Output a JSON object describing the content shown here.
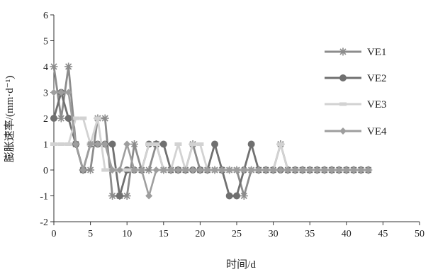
{
  "chart_data": {
    "type": "line",
    "title": "",
    "xlabel": "时间/d",
    "ylabel": "膨胀速率/(mm·d⁻¹)",
    "xlim": [
      0,
      50
    ],
    "ylim": [
      -2,
      6
    ],
    "xticks": [
      "0",
      "5",
      "10",
      "15",
      "20",
      "25",
      "30",
      "35",
      "40",
      "45",
      "50"
    ],
    "yticks": [
      "-2",
      "-1",
      "0",
      "1",
      "2",
      "3",
      "4",
      "5",
      "6"
    ],
    "grid": false,
    "legend_position": "right",
    "series": [
      {
        "name": "VE1",
        "color": "#8c8c8c",
        "marker": "asterisk",
        "x": [
          0,
          1,
          2,
          3,
          4,
          5,
          6,
          7,
          8,
          9,
          10,
          11,
          12,
          13,
          14,
          15,
          16,
          17,
          18,
          19,
          20,
          21,
          22,
          23,
          24,
          25,
          26,
          27,
          28,
          29,
          30,
          31,
          32,
          33,
          34,
          35,
          36,
          37,
          38,
          39,
          40,
          41,
          42,
          43
        ],
        "values": [
          4,
          2,
          4,
          1,
          0,
          0,
          2,
          2,
          -1,
          -1,
          -1,
          1,
          0,
          0,
          1,
          0,
          0,
          0,
          0,
          1,
          0,
          0,
          0,
          0,
          0,
          0,
          -1,
          0,
          0,
          0,
          0,
          1,
          0,
          0,
          0,
          0,
          0,
          0,
          0,
          0,
          0,
          0,
          0,
          0
        ]
      },
      {
        "name": "VE2",
        "color": "#707070",
        "marker": "circle",
        "x": [
          0,
          1,
          2,
          3,
          4,
          5,
          6,
          7,
          8,
          9,
          10,
          11,
          12,
          13,
          14,
          15,
          16,
          17,
          18,
          19,
          20,
          21,
          22,
          23,
          24,
          25,
          26,
          27,
          28,
          29,
          30,
          31,
          32,
          33,
          34,
          35,
          36,
          37,
          38,
          39,
          40,
          41,
          42,
          43
        ],
        "values": [
          2,
          3,
          2,
          1,
          0,
          1,
          1,
          1,
          1,
          -1,
          0,
          0,
          0,
          1,
          1,
          1,
          0,
          0,
          0,
          0,
          0,
          0,
          1,
          0,
          -1,
          -1,
          0,
          1,
          0,
          0,
          0,
          0,
          0,
          0,
          0,
          0,
          0,
          0,
          0,
          0,
          0,
          0,
          0,
          0
        ]
      },
      {
        "name": "VE3",
        "color": "#d2d2d2",
        "marker": "dash",
        "x": [
          0,
          1,
          2,
          3,
          4,
          5,
          6,
          7,
          8,
          9,
          10,
          11,
          12,
          13,
          14,
          15,
          16,
          17,
          18,
          19,
          20,
          21,
          22,
          23,
          24,
          25,
          26,
          27,
          28,
          29,
          30,
          31,
          32,
          33,
          34,
          35,
          36,
          37,
          38,
          39,
          40,
          41,
          42,
          43
        ],
        "values": [
          1,
          1,
          1,
          2,
          2,
          1,
          2,
          0,
          0,
          0,
          0,
          0,
          0,
          1,
          1,
          0,
          0,
          1,
          0,
          1,
          1,
          0,
          0,
          0,
          0,
          0,
          0,
          0,
          0,
          0,
          0,
          1,
          0,
          0,
          0,
          0,
          0,
          0,
          0,
          0,
          0,
          0,
          0,
          0
        ]
      },
      {
        "name": "VE4",
        "color": "#9e9e9e",
        "marker": "diamond",
        "x": [
          0,
          1,
          2,
          3,
          4,
          5,
          6,
          7,
          8,
          9,
          10,
          11,
          12,
          13,
          14,
          15,
          16,
          17,
          18,
          19,
          20,
          21,
          22,
          23,
          24,
          25,
          26,
          27,
          28,
          29,
          30,
          31,
          32,
          33,
          34,
          35,
          36,
          37,
          38,
          39,
          40,
          41,
          42,
          43
        ],
        "values": [
          3,
          3,
          3,
          1,
          0,
          1,
          1,
          1,
          0,
          0,
          1,
          0,
          0,
          -1,
          0,
          0,
          0,
          0,
          0,
          0,
          0,
          0,
          0,
          0,
          0,
          0,
          0,
          0,
          0,
          0,
          0,
          0,
          0,
          0,
          0,
          0,
          0,
          0,
          0,
          0,
          0,
          0,
          0,
          0
        ]
      }
    ]
  }
}
